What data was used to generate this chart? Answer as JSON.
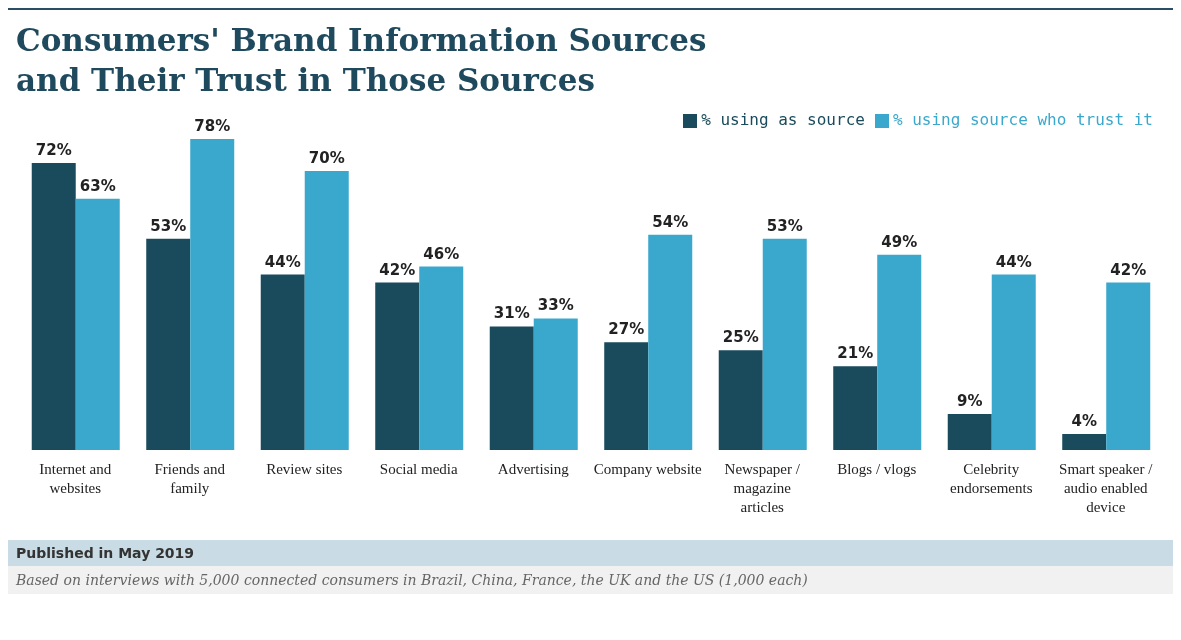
{
  "chart_data": {
    "type": "bar",
    "title": "Consumers' Brand Information Sources and Their Trust in Those Sources",
    "categories": [
      "Internet and websites",
      "Friends and family",
      "Review sites",
      "Social media",
      "Advertising",
      "Company website",
      "Newspaper / magazine articles",
      "Blogs / vlogs",
      "Celebrity endorsements",
      "Smart speaker / audio enabled device"
    ],
    "series": [
      {
        "name": "% using as source",
        "color": "#1a4b5c",
        "values": [
          72,
          53,
          44,
          42,
          31,
          27,
          25,
          21,
          9,
          4
        ],
        "value_labels": [
          "72%",
          "53%",
          "44%",
          "42%",
          "31%",
          "27%",
          "25%",
          "21%",
          "9%",
          "4%"
        ]
      },
      {
        "name": "% using source who trust it",
        "color": "#3aa8cc",
        "values": [
          63,
          78,
          70,
          46,
          33,
          54,
          53,
          49,
          44,
          42
        ],
        "value_labels": [
          "63%",
          "78%",
          "70%",
          "46%",
          "33%",
          "54%",
          "53%",
          "49%",
          "44%",
          "42%"
        ]
      }
    ],
    "legend": "top right",
    "grid": false,
    "annotations": [
      "Published in May 2019",
      "Based on interviews with 5,000 connected consumers in Brazil, China, France, the UK and the US (1,000 each)"
    ]
  }
}
